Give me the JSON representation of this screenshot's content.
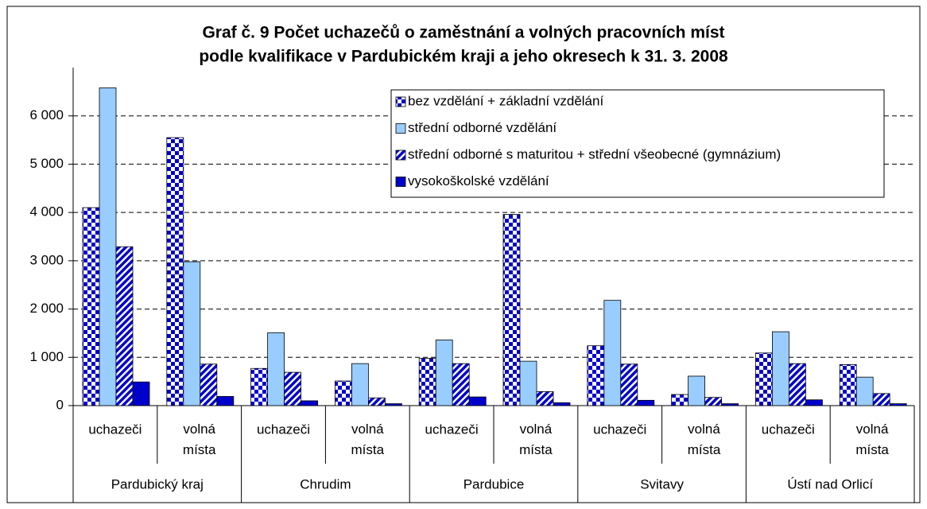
{
  "chart_data": {
    "type": "bar",
    "title": [
      "Graf č. 9 Počet uchazečů o zaměstnání a volných pracovních míst",
      "podle kvalifikace v Pardubickém kraji a jeho okresech k 31. 3. 2008"
    ],
    "categories": [
      "uchazeči",
      "volná místa",
      "uchazeči",
      "volná místa",
      "uchazeči",
      "volná místa",
      "uchazeči",
      "volná místa",
      "uchazeči",
      "volná místa"
    ],
    "groups": [
      "Pardubický kraj",
      "Chrudim",
      "Pardubice",
      "Svitavy",
      "Ústí nad Orlicí"
    ],
    "series": [
      {
        "name": "bez vzdělání + základní vzdělání",
        "color": "#0000cc",
        "pattern": "checker",
        "values": [
          4100,
          5550,
          770,
          510,
          980,
          3960,
          1240,
          230,
          1090,
          850
        ]
      },
      {
        "name": "střední odborné vzdělání",
        "color": "#99ccff",
        "values": [
          6580,
          2980,
          1510,
          870,
          1360,
          920,
          2180,
          610,
          1530,
          590
        ]
      },
      {
        "name": "střední odborné s maturitou + střední všeobecné (gymnázium)",
        "color": "#0000cc",
        "pattern": "stripes",
        "values": [
          3290,
          860,
          690,
          160,
          870,
          290,
          860,
          170,
          870,
          250
        ]
      },
      {
        "name": "vysokoškolské vzdělání",
        "color": "#0000cc",
        "values": [
          490,
          190,
          100,
          40,
          180,
          60,
          110,
          40,
          120,
          40
        ]
      }
    ],
    "ylim": [
      0,
      7000
    ],
    "yticks": [
      0,
      {
        "value": 1000,
        "label": "1 000"
      },
      {
        "value": 2000,
        "label": "2 000"
      },
      {
        "value": 3000,
        "label": "3 000"
      },
      {
        "value": 4000,
        "label": "4 000"
      },
      {
        "value": 5000,
        "label": "5 000"
      },
      {
        "value": 6000,
        "label": "6 000"
      }
    ],
    "grid": true
  }
}
